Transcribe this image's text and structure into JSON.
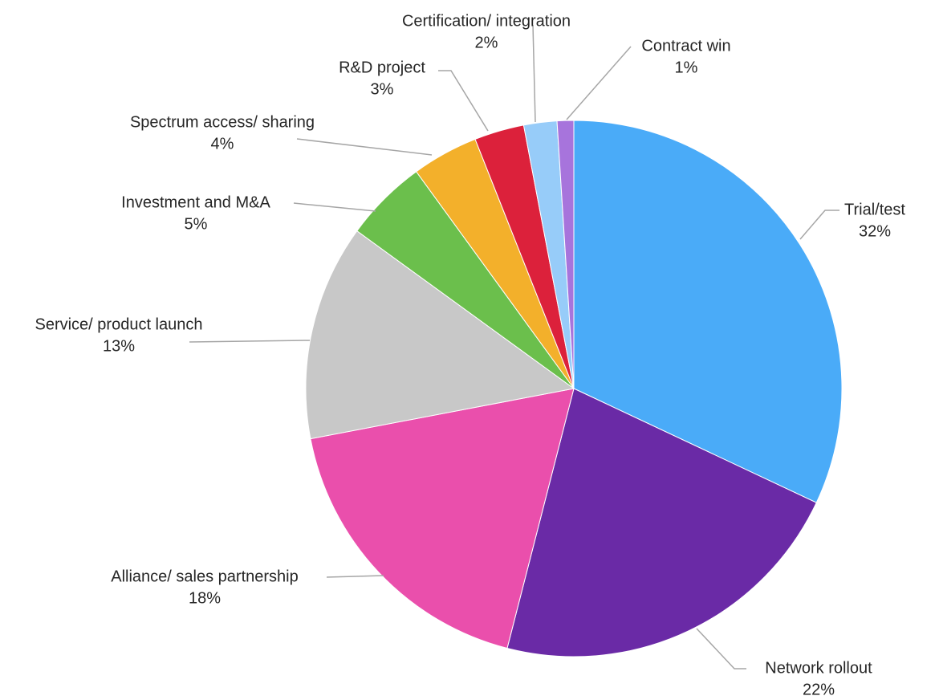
{
  "chart_data": {
    "type": "pie",
    "title": "",
    "start_angle_deg": 0,
    "direction": "clockwise",
    "slices": [
      {
        "label": "Trial/test",
        "value": 32,
        "pct_label": "32%",
        "color": "#4aabf8"
      },
      {
        "label": "Network rollout",
        "value": 22,
        "pct_label": "22%",
        "color": "#6a2aa6"
      },
      {
        "label": "Alliance/ sales partnership",
        "value": 18,
        "pct_label": "18%",
        "color": "#ea4fac"
      },
      {
        "label": "Service/ product launch",
        "value": 13,
        "pct_label": "13%",
        "color": "#c8c8c8"
      },
      {
        "label": "Investment and M&A",
        "value": 5,
        "pct_label": "5%",
        "color": "#6bbf4c"
      },
      {
        "label": "Spectrum access/ sharing",
        "value": 4,
        "pct_label": "4%",
        "color": "#f3b02b"
      },
      {
        "label": "R&D project",
        "value": 3,
        "pct_label": "3%",
        "color": "#dc213b"
      },
      {
        "label": "Certification/ integration",
        "value": 2,
        "pct_label": "2%",
        "color": "#97ccf9"
      },
      {
        "label": "Contract win",
        "value": 1,
        "pct_label": "1%",
        "color": "#a774dc"
      }
    ]
  }
}
